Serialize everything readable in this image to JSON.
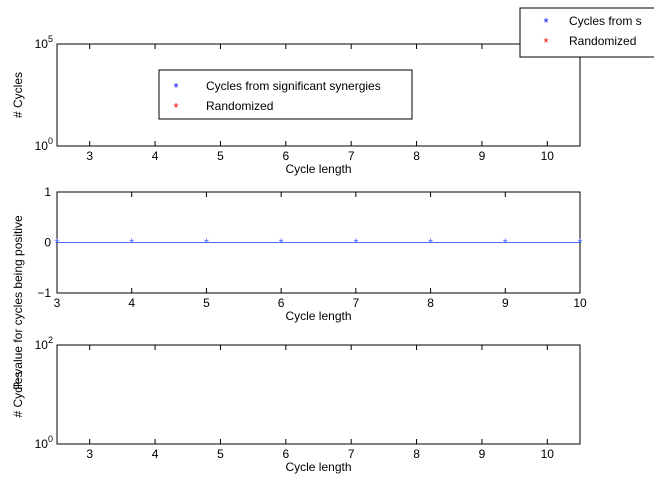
{
  "chart_data": [
    {
      "type": "scatter",
      "xlabel": "Cycle length",
      "ylabel": "# Cycles",
      "xlim": [
        2.5,
        10.5
      ],
      "yscale": "log",
      "ylim": [
        1,
        100000
      ],
      "xticks": [
        "3",
        "4",
        "5",
        "6",
        "7",
        "8",
        "9",
        "10"
      ],
      "yticks": [
        {
          "base": "10",
          "exp": "0",
          "value": 1
        },
        {
          "base": "10",
          "exp": "5",
          "value": 100000
        }
      ],
      "grid": false,
      "series": [
        {
          "name": "Cycles from significant synergies",
          "color": "#0000ff",
          "marker": "*",
          "x": [],
          "y": []
        },
        {
          "name": "Randomized",
          "color": "#ff0000",
          "marker": "*",
          "x": [],
          "y": []
        }
      ],
      "legends": [
        {
          "placement": "center-inside",
          "entries": [
            "Cycles from significant synergies",
            "Randomized"
          ]
        },
        {
          "placement": "top-right-outside-clipped",
          "entries": [
            "Cycles from s",
            "Randomized"
          ]
        }
      ]
    },
    {
      "type": "line",
      "xlabel": "Cycle length",
      "ylabel": "P−value for cycles being positive",
      "xlim": [
        3,
        10
      ],
      "ylim": [
        -1,
        1
      ],
      "xticks": [
        "3",
        "4",
        "5",
        "6",
        "7",
        "8",
        "9",
        "10"
      ],
      "yticks": [
        "−1",
        "0",
        "1"
      ],
      "grid": false,
      "series": [
        {
          "color": "#4f6bff",
          "marker": "*",
          "x": [
            3,
            4,
            5,
            6,
            7,
            8,
            9,
            10
          ],
          "y": [
            0,
            0,
            0,
            0,
            0,
            0,
            0,
            0
          ]
        }
      ]
    },
    {
      "type": "scatter",
      "xlabel": "Cycle length",
      "ylabel": "# Cycles",
      "xlim": [
        2.5,
        10.5
      ],
      "yscale": "log",
      "ylim": [
        1,
        100
      ],
      "xticks": [
        "3",
        "4",
        "5",
        "6",
        "7",
        "8",
        "9",
        "10"
      ],
      "yticks": [
        {
          "base": "10",
          "exp": "0",
          "value": 1
        },
        {
          "base": "10",
          "exp": "2",
          "value": 100
        }
      ],
      "grid": false,
      "series": []
    }
  ]
}
